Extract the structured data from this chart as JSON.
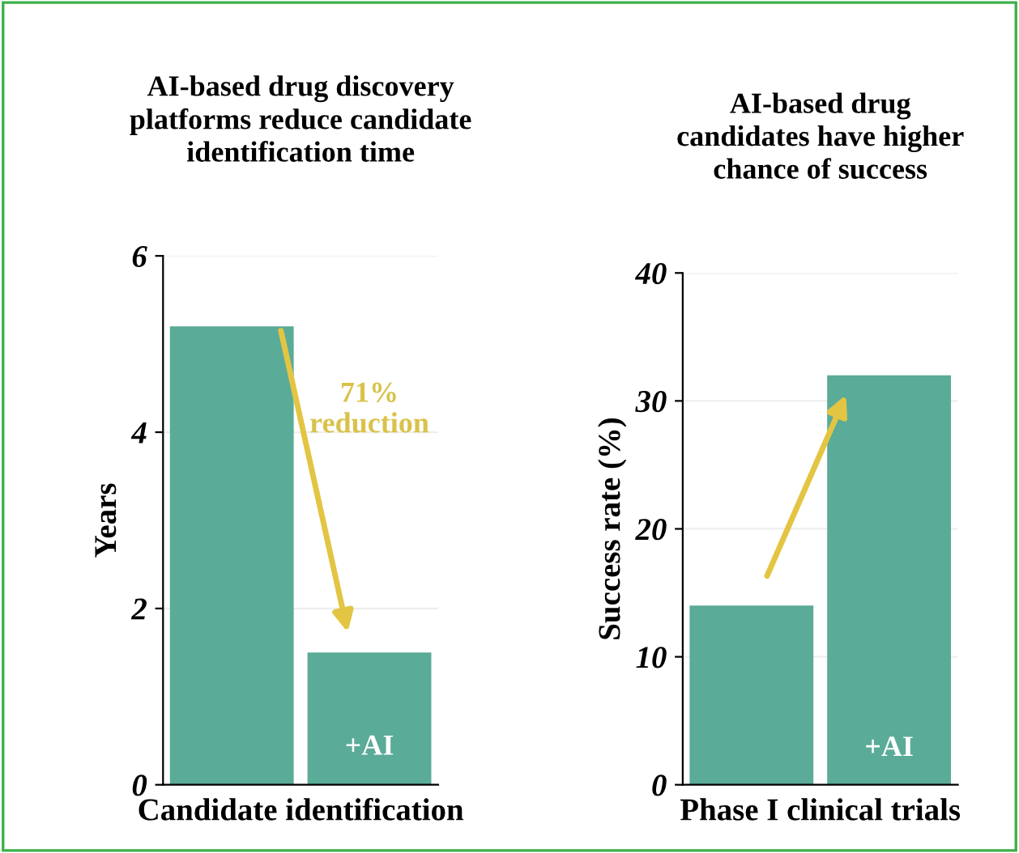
{
  "chart_data": [
    {
      "type": "bar",
      "title": "AI-based drug discovery\nplatforms reduce candidate\nidentification time",
      "categories": [
        null,
        "+AI"
      ],
      "values": [
        5.2,
        1.5
      ],
      "color": "#5aab98",
      "xlabel": "Candidate identification",
      "ylabel": "Years",
      "ylim": [
        0,
        6
      ],
      "yticks": [
        0,
        2,
        4,
        6
      ],
      "grid": "y",
      "annotations": [
        "71%\nreduction"
      ]
    },
    {
      "type": "bar",
      "title": "AI-based drug\ncandidates have higher\nchance of success",
      "categories": [
        null,
        "+AI"
      ],
      "values": [
        14,
        32
      ],
      "color": "#5aab98",
      "xlabel": "Phase I clinical trials",
      "ylabel": "Success rate (%)",
      "ylim": [
        0,
        40
      ],
      "yticks": [
        0,
        10,
        20,
        30,
        40
      ],
      "grid": "y"
    }
  ]
}
